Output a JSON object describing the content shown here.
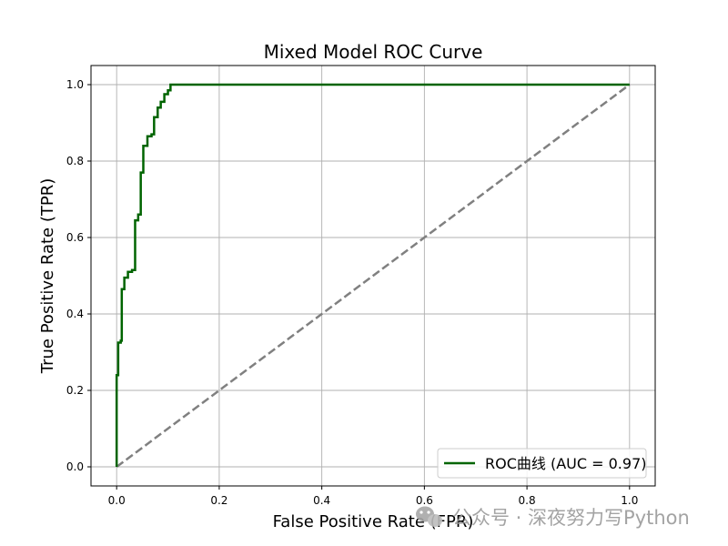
{
  "chart_data": {
    "type": "line",
    "title": "Mixed Model ROC Curve",
    "xlabel": "False Positive Rate (FPR)",
    "ylabel": "True Positive Rate (TPR)",
    "xlim": [
      -0.05,
      1.05
    ],
    "ylim": [
      -0.05,
      1.05
    ],
    "xticks": [
      0.0,
      0.2,
      0.4,
      0.6,
      0.8,
      1.0
    ],
    "yticks": [
      0.0,
      0.2,
      0.4,
      0.6,
      0.8,
      1.0
    ],
    "xtick_labels": [
      "0.0",
      "0.2",
      "0.4",
      "0.6",
      "0.8",
      "1.0"
    ],
    "ytick_labels": [
      "0.0",
      "0.2",
      "0.4",
      "0.6",
      "0.8",
      "1.0"
    ],
    "grid": true,
    "legend_position": "lower-right",
    "series": [
      {
        "name": "ROC曲线 (AUC = 0.97)",
        "color": "#006400",
        "style": "solid",
        "x": [
          0,
          0,
          0.003,
          0.003,
          0.008,
          0.008,
          0.01,
          0.01,
          0.015,
          0.015,
          0.022,
          0.022,
          0.03,
          0.03,
          0.036,
          0.036,
          0.042,
          0.042,
          0.047,
          0.047,
          0.052,
          0.052,
          0.06,
          0.06,
          0.068,
          0.068,
          0.073,
          0.073,
          0.08,
          0.08,
          0.086,
          0.086,
          0.093,
          0.093,
          0.1,
          0.1,
          0.105,
          0.105,
          1.0
        ],
        "y": [
          0,
          0.24,
          0.24,
          0.325,
          0.325,
          0.33,
          0.33,
          0.465,
          0.465,
          0.495,
          0.495,
          0.51,
          0.51,
          0.515,
          0.515,
          0.645,
          0.645,
          0.66,
          0.66,
          0.77,
          0.77,
          0.84,
          0.84,
          0.865,
          0.865,
          0.87,
          0.87,
          0.915,
          0.915,
          0.94,
          0.94,
          0.955,
          0.955,
          0.975,
          0.975,
          0.985,
          0.985,
          1.0,
          1.0
        ]
      },
      {
        "name": "",
        "color": "#808080",
        "style": "dashed",
        "x": [
          0,
          1
        ],
        "y": [
          0,
          1
        ]
      }
    ]
  },
  "watermark": {
    "text": "公众号 · 深夜努力写Python",
    "icon": "wechat-icon"
  }
}
